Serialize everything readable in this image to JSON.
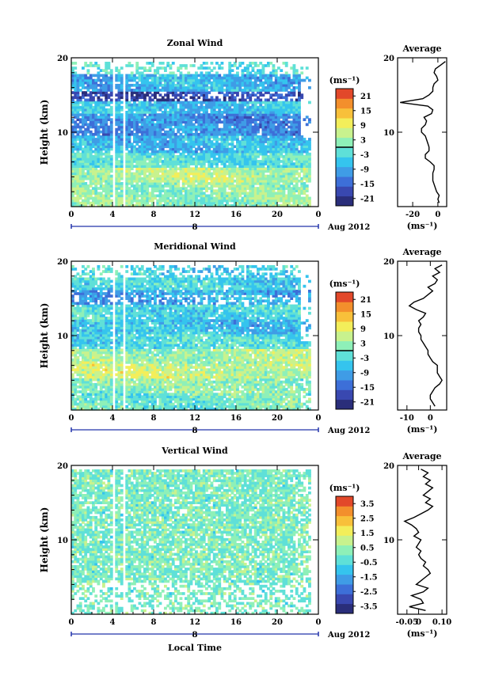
{
  "chart_data": [
    {
      "type": "heatmap",
      "title": "Zonal Wind",
      "ylabel": "Height (km)",
      "ylim": [
        0,
        20
      ],
      "yticks": [
        "20",
        "10"
      ],
      "xticks": [
        "0",
        "4",
        "8",
        "12",
        "16",
        "20",
        "0"
      ],
      "xlim": [
        0,
        24
      ],
      "date_label": "8",
      "date_suffix": "Aug 2012",
      "colorbar": {
        "unit": "(ms⁻¹)",
        "ticks": [
          "21",
          "15",
          "9",
          "3",
          "-3",
          "-9",
          "-15",
          "-21"
        ],
        "range": [
          -24,
          24
        ],
        "zero_line": true
      },
      "average": {
        "title": "Average",
        "yticks": [
          "20",
          "10"
        ],
        "xticks": [
          "-20",
          "0"
        ],
        "xlim": [
          -32,
          7
        ],
        "unit": "(ms⁻¹)",
        "profile": [
          [
            0.5,
            1
          ],
          [
            1,
            0
          ],
          [
            1.5,
            1
          ],
          [
            2,
            -1
          ],
          [
            2.5,
            -2
          ],
          [
            3,
            -3
          ],
          [
            3.5,
            -4
          ],
          [
            4,
            -4
          ],
          [
            4.5,
            -4
          ],
          [
            5,
            -3
          ],
          [
            5.5,
            -3
          ],
          [
            6,
            -6
          ],
          [
            6.5,
            -10
          ],
          [
            7,
            -10
          ],
          [
            7.5,
            -7
          ],
          [
            8,
            -7
          ],
          [
            8.5,
            -8
          ],
          [
            9,
            -9
          ],
          [
            9.5,
            -10
          ],
          [
            10,
            -13
          ],
          [
            10.5,
            -13
          ],
          [
            11,
            -10
          ],
          [
            11.5,
            -9
          ],
          [
            12,
            -11
          ],
          [
            12.5,
            -5
          ],
          [
            13,
            -4
          ],
          [
            13.5,
            -8
          ],
          [
            14,
            -30
          ],
          [
            14.5,
            -12
          ],
          [
            15,
            -7
          ],
          [
            15.5,
            -4
          ],
          [
            16,
            -4
          ],
          [
            16.5,
            -3
          ],
          [
            17,
            0
          ],
          [
            17.5,
            -1
          ],
          [
            18,
            -3
          ],
          [
            18.5,
            -2
          ],
          [
            19,
            2
          ],
          [
            19.5,
            6
          ]
        ]
      }
    },
    {
      "type": "heatmap",
      "title": "Meridional Wind",
      "ylabel": "Height (km)",
      "ylim": [
        0,
        20
      ],
      "yticks": [
        "20",
        "10"
      ],
      "xticks": [
        "0",
        "4",
        "8",
        "12",
        "16",
        "20",
        "0"
      ],
      "xlim": [
        0,
        24
      ],
      "date_label": "8",
      "date_suffix": "Aug 2012",
      "colorbar": {
        "unit": "(ms⁻¹)",
        "ticks": [
          "21",
          "15",
          "9",
          "3",
          "-3",
          "-9",
          "-15",
          "-21"
        ],
        "range": [
          -24,
          24
        ],
        "zero_line": true
      },
      "average": {
        "title": "Average",
        "yticks": [
          "20",
          "10"
        ],
        "xticks": [
          "-10",
          "0"
        ],
        "xlim": [
          -14,
          7
        ],
        "unit": "(ms⁻¹)",
        "profile": [
          [
            0.5,
            2
          ],
          [
            1,
            1
          ],
          [
            1.5,
            0
          ],
          [
            2,
            0
          ],
          [
            2.5,
            1
          ],
          [
            3,
            2
          ],
          [
            3.5,
            4
          ],
          [
            4,
            5
          ],
          [
            4.5,
            4
          ],
          [
            5,
            3
          ],
          [
            5.5,
            3
          ],
          [
            6,
            3
          ],
          [
            6.5,
            1
          ],
          [
            7,
            0
          ],
          [
            7.5,
            -1
          ],
          [
            8,
            -1
          ],
          [
            8.5,
            -2
          ],
          [
            9,
            -3
          ],
          [
            9.5,
            -4
          ],
          [
            10,
            -4
          ],
          [
            10.5,
            -5
          ],
          [
            11,
            -5
          ],
          [
            11.5,
            -4
          ],
          [
            12,
            -5
          ],
          [
            12.5,
            -3
          ],
          [
            13,
            -2
          ],
          [
            13.5,
            -6
          ],
          [
            14,
            -9
          ],
          [
            14.5,
            -7
          ],
          [
            15,
            -3
          ],
          [
            15.5,
            -1
          ],
          [
            16,
            1
          ],
          [
            16.5,
            -1
          ],
          [
            17,
            2
          ],
          [
            17.5,
            3
          ],
          [
            18,
            1
          ],
          [
            18.5,
            4
          ],
          [
            19,
            2
          ],
          [
            19.5,
            5
          ]
        ]
      }
    },
    {
      "type": "heatmap",
      "title": "Vertical Wind",
      "ylabel": "Height (km)",
      "xlabel": "Local Time",
      "ylim": [
        0,
        20
      ],
      "yticks": [
        "20",
        "10"
      ],
      "xticks": [
        "0",
        "4",
        "8",
        "12",
        "16",
        "20",
        "0"
      ],
      "xlim": [
        0,
        24
      ],
      "date_label": "8",
      "date_suffix": "Aug 2012",
      "colorbar": {
        "unit": "(ms⁻¹)",
        "ticks": [
          "3.5",
          "2.5",
          "1.5",
          "0.5",
          "-0.5",
          "-1.5",
          "-2.5",
          "-3.5"
        ],
        "range": [
          -4,
          4
        ],
        "zero_line": false
      },
      "average": {
        "title": "Average",
        "yticks": [
          "20",
          "10"
        ],
        "xticks": [
          "-0.05",
          "0",
          "0.10"
        ],
        "xlim": [
          -0.09,
          0.12
        ],
        "unit": "(ms⁻¹)",
        "profile": [
          [
            0.5,
            0.03
          ],
          [
            1,
            -0.04
          ],
          [
            1.5,
            0.02
          ],
          [
            2,
            0.01
          ],
          [
            2.5,
            -0.03
          ],
          [
            3,
            0.02
          ],
          [
            3.5,
            0.04
          ],
          [
            4,
            -0.01
          ],
          [
            4.5,
            0.01
          ],
          [
            5,
            0.03
          ],
          [
            5.5,
            0.05
          ],
          [
            6,
            0.04
          ],
          [
            6.5,
            0.02
          ],
          [
            7,
            0.03
          ],
          [
            7.5,
            0.01
          ],
          [
            8,
            0.0
          ],
          [
            8.5,
            0.01
          ],
          [
            9,
            -0.01
          ],
          [
            9.5,
            0.0
          ],
          [
            10,
            0.01
          ],
          [
            10.5,
            -0.02
          ],
          [
            11,
            0.0
          ],
          [
            11.5,
            -0.01
          ],
          [
            12,
            -0.03
          ],
          [
            12.5,
            -0.06
          ],
          [
            13,
            -0.02
          ],
          [
            13.5,
            0.01
          ],
          [
            14,
            0.04
          ],
          [
            14.5,
            0.06
          ],
          [
            15,
            0.03
          ],
          [
            15.5,
            0.05
          ],
          [
            16,
            0.02
          ],
          [
            16.5,
            0.04
          ],
          [
            17,
            0.06
          ],
          [
            17.5,
            0.03
          ],
          [
            18,
            0.05
          ],
          [
            18.5,
            0.02
          ],
          [
            19,
            0.04
          ],
          [
            19.5,
            0.01
          ]
        ]
      }
    }
  ]
}
